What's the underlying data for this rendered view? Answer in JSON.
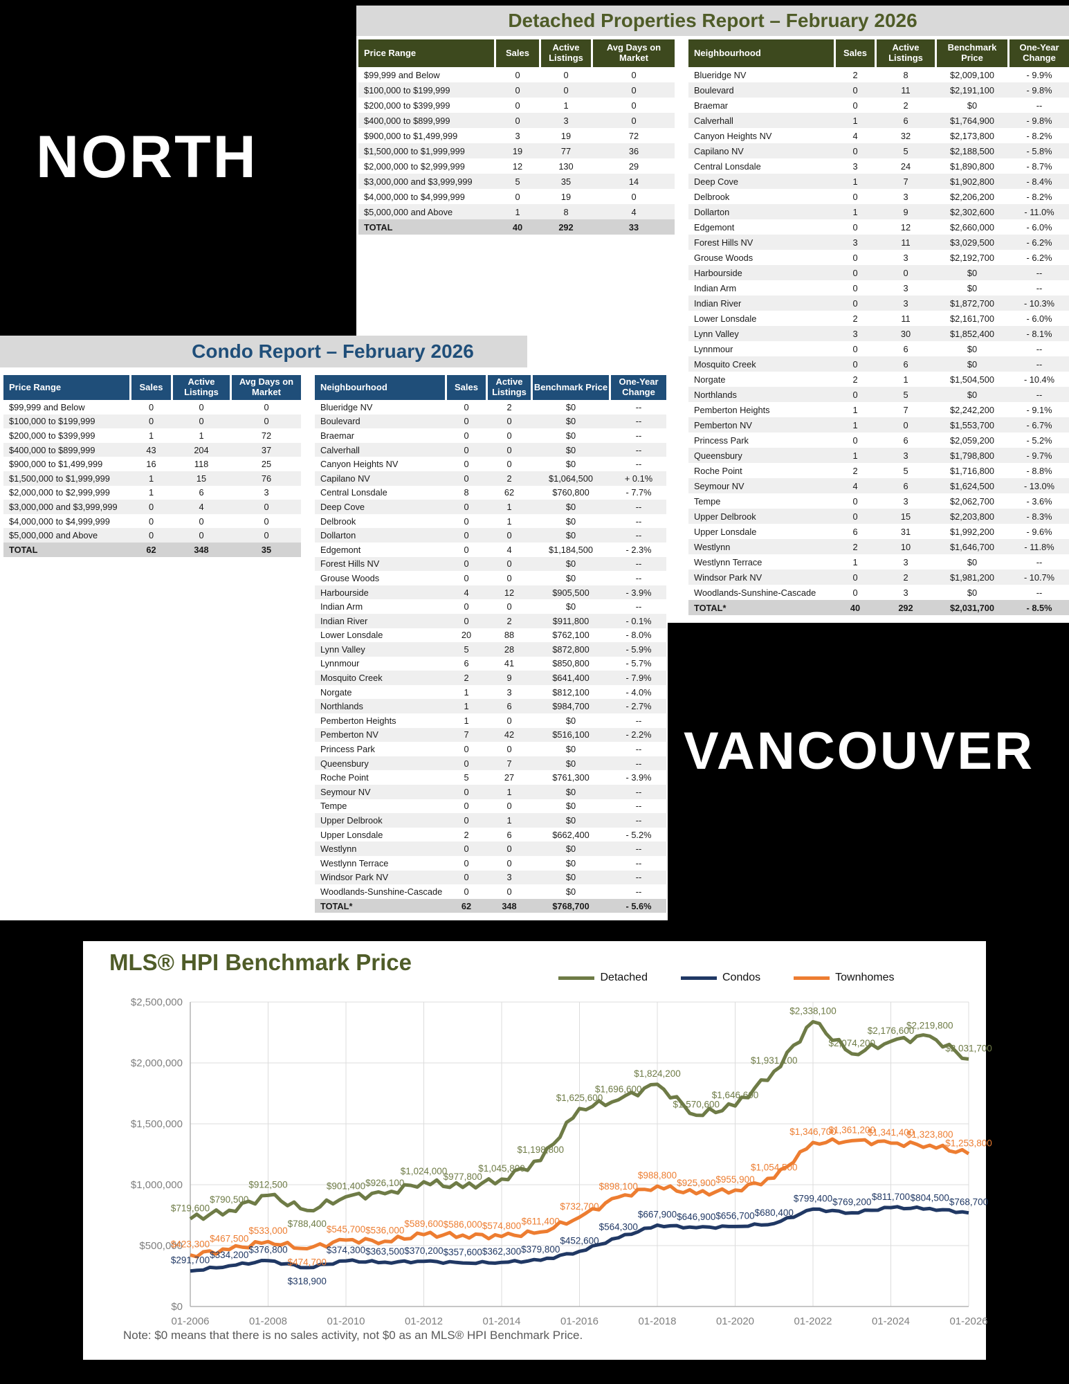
{
  "north_label": "NORTH",
  "vancouver_label": "VANCOUVER",
  "detached": {
    "title": "Detached Properties Report – February 2026",
    "price_table": {
      "headers": [
        "Price Range",
        "Sales",
        "Active Listings",
        "Avg Days on Market"
      ],
      "rows": [
        [
          "$99,999 and Below",
          "0",
          "0",
          "0"
        ],
        [
          "$100,000 to $199,999",
          "0",
          "0",
          "0"
        ],
        [
          "$200,000 to $399,999",
          "0",
          "1",
          "0"
        ],
        [
          "$400,000 to $899,999",
          "0",
          "3",
          "0"
        ],
        [
          "$900,000 to $1,499,999",
          "3",
          "19",
          "72"
        ],
        [
          "$1,500,000 to $1,999,999",
          "19",
          "77",
          "36"
        ],
        [
          "$2,000,000 to $2,999,999",
          "12",
          "130",
          "29"
        ],
        [
          "$3,000,000 and $3,999,999",
          "5",
          "35",
          "14"
        ],
        [
          "$4,000,000 to $4,999,999",
          "0",
          "19",
          "0"
        ],
        [
          "$5,000,000 and Above",
          "1",
          "8",
          "4"
        ]
      ],
      "total": [
        "TOTAL",
        "40",
        "292",
        "33"
      ]
    },
    "neighbourhood_table": {
      "headers": [
        "Neighbourhood",
        "Sales",
        "Active Listings",
        "Benchmark Price",
        "One-Year Change"
      ],
      "rows": [
        [
          "Blueridge NV",
          "2",
          "8",
          "$2,009,100",
          "- 9.9%"
        ],
        [
          "Boulevard",
          "0",
          "11",
          "$2,191,100",
          "- 9.8%"
        ],
        [
          "Braemar",
          "0",
          "2",
          "$0",
          "--"
        ],
        [
          "Calverhall",
          "1",
          "6",
          "$1,764,900",
          "- 9.8%"
        ],
        [
          "Canyon Heights NV",
          "4",
          "32",
          "$2,173,800",
          "- 8.2%"
        ],
        [
          "Capilano NV",
          "0",
          "5",
          "$2,188,500",
          "- 5.8%"
        ],
        [
          "Central Lonsdale",
          "3",
          "24",
          "$1,890,800",
          "- 8.7%"
        ],
        [
          "Deep Cove",
          "1",
          "7",
          "$1,902,800",
          "- 8.4%"
        ],
        [
          "Delbrook",
          "0",
          "3",
          "$2,206,200",
          "- 8.2%"
        ],
        [
          "Dollarton",
          "1",
          "9",
          "$2,302,600",
          "- 11.0%"
        ],
        [
          "Edgemont",
          "0",
          "12",
          "$2,660,000",
          "- 6.0%"
        ],
        [
          "Forest Hills NV",
          "3",
          "11",
          "$3,029,500",
          "- 6.2%"
        ],
        [
          "Grouse Woods",
          "0",
          "3",
          "$2,192,700",
          "- 6.2%"
        ],
        [
          "Harbourside",
          "0",
          "0",
          "$0",
          "--"
        ],
        [
          "Indian Arm",
          "0",
          "3",
          "$0",
          "--"
        ],
        [
          "Indian River",
          "0",
          "3",
          "$1,872,700",
          "- 10.3%"
        ],
        [
          "Lower Lonsdale",
          "2",
          "11",
          "$2,161,700",
          "- 6.0%"
        ],
        [
          "Lynn Valley",
          "3",
          "30",
          "$1,852,400",
          "- 8.1%"
        ],
        [
          "Lynnmour",
          "0",
          "6",
          "$0",
          "--"
        ],
        [
          "Mosquito Creek",
          "0",
          "6",
          "$0",
          "--"
        ],
        [
          "Norgate",
          "2",
          "1",
          "$1,504,500",
          "- 10.4%"
        ],
        [
          "Northlands",
          "0",
          "5",
          "$0",
          "--"
        ],
        [
          "Pemberton Heights",
          "1",
          "7",
          "$2,242,200",
          "- 9.1%"
        ],
        [
          "Pemberton NV",
          "1",
          "0",
          "$1,553,700",
          "- 6.7%"
        ],
        [
          "Princess Park",
          "0",
          "6",
          "$2,059,200",
          "- 5.2%"
        ],
        [
          "Queensbury",
          "1",
          "3",
          "$1,798,800",
          "- 9.7%"
        ],
        [
          "Roche Point",
          "2",
          "5",
          "$1,716,800",
          "- 8.8%"
        ],
        [
          "Seymour NV",
          "4",
          "6",
          "$1,624,500",
          "- 13.0%"
        ],
        [
          "Tempe",
          "0",
          "3",
          "$2,062,700",
          "- 3.6%"
        ],
        [
          "Upper Delbrook",
          "0",
          "15",
          "$2,203,800",
          "- 8.3%"
        ],
        [
          "Upper Lonsdale",
          "6",
          "31",
          "$1,992,200",
          "- 9.6%"
        ],
        [
          "Westlynn",
          "2",
          "10",
          "$1,646,700",
          "- 11.8%"
        ],
        [
          "Westlynn Terrace",
          "1",
          "3",
          "$0",
          "--"
        ],
        [
          "Windsor Park NV",
          "0",
          "2",
          "$1,981,200",
          "- 10.7%"
        ],
        [
          "Woodlands-Sunshine-Cascade",
          "0",
          "3",
          "$0",
          "--"
        ]
      ],
      "total": [
        "TOTAL*",
        "40",
        "292",
        "$2,031,700",
        "- 8.5%"
      ]
    }
  },
  "condo": {
    "title": "Condo Report – February 2026",
    "price_table": {
      "headers": [
        "Price Range",
        "Sales",
        "Active Listings",
        "Avg Days on Market"
      ],
      "rows": [
        [
          "$99,999 and Below",
          "0",
          "0",
          "0"
        ],
        [
          "$100,000 to $199,999",
          "0",
          "0",
          "0"
        ],
        [
          "$200,000 to $399,999",
          "1",
          "1",
          "72"
        ],
        [
          "$400,000 to $899,999",
          "43",
          "204",
          "37"
        ],
        [
          "$900,000 to $1,499,999",
          "16",
          "118",
          "25"
        ],
        [
          "$1,500,000 to $1,999,999",
          "1",
          "15",
          "76"
        ],
        [
          "$2,000,000 to $2,999,999",
          "1",
          "6",
          "3"
        ],
        [
          "$3,000,000 and $3,999,999",
          "0",
          "4",
          "0"
        ],
        [
          "$4,000,000 to $4,999,999",
          "0",
          "0",
          "0"
        ],
        [
          "$5,000,000 and Above",
          "0",
          "0",
          "0"
        ]
      ],
      "total": [
        "TOTAL",
        "62",
        "348",
        "35"
      ]
    },
    "neighbourhood_table": {
      "headers": [
        "Neighbourhood",
        "Sales",
        "Active Listings",
        "Benchmark Price",
        "One-Year Change"
      ],
      "rows": [
        [
          "Blueridge NV",
          "0",
          "2",
          "$0",
          "--"
        ],
        [
          "Boulevard",
          "0",
          "0",
          "$0",
          "--"
        ],
        [
          "Braemar",
          "0",
          "0",
          "$0",
          "--"
        ],
        [
          "Calverhall",
          "0",
          "0",
          "$0",
          "--"
        ],
        [
          "Canyon Heights NV",
          "0",
          "0",
          "$0",
          "--"
        ],
        [
          "Capilano NV",
          "0",
          "2",
          "$1,064,500",
          "+ 0.1%"
        ],
        [
          "Central Lonsdale",
          "8",
          "62",
          "$760,800",
          "- 7.7%"
        ],
        [
          "Deep Cove",
          "0",
          "1",
          "$0",
          "--"
        ],
        [
          "Delbrook",
          "0",
          "1",
          "$0",
          "--"
        ],
        [
          "Dollarton",
          "0",
          "0",
          "$0",
          "--"
        ],
        [
          "Edgemont",
          "0",
          "4",
          "$1,184,500",
          "- 2.3%"
        ],
        [
          "Forest Hills NV",
          "0",
          "0",
          "$0",
          "--"
        ],
        [
          "Grouse Woods",
          "0",
          "0",
          "$0",
          "--"
        ],
        [
          "Harbourside",
          "4",
          "12",
          "$905,500",
          "- 3.9%"
        ],
        [
          "Indian Arm",
          "0",
          "0",
          "$0",
          "--"
        ],
        [
          "Indian River",
          "0",
          "2",
          "$911,800",
          "- 0.1%"
        ],
        [
          "Lower Lonsdale",
          "20",
          "88",
          "$762,100",
          "- 8.0%"
        ],
        [
          "Lynn Valley",
          "5",
          "28",
          "$872,800",
          "- 5.9%"
        ],
        [
          "Lynnmour",
          "6",
          "41",
          "$850,800",
          "- 5.7%"
        ],
        [
          "Mosquito Creek",
          "2",
          "9",
          "$641,400",
          "- 7.9%"
        ],
        [
          "Norgate",
          "1",
          "3",
          "$812,100",
          "- 4.0%"
        ],
        [
          "Northlands",
          "1",
          "6",
          "$984,700",
          "- 2.7%"
        ],
        [
          "Pemberton Heights",
          "1",
          "0",
          "$0",
          "--"
        ],
        [
          "Pemberton NV",
          "7",
          "42",
          "$516,100",
          "- 2.2%"
        ],
        [
          "Princess Park",
          "0",
          "0",
          "$0",
          "--"
        ],
        [
          "Queensbury",
          "0",
          "7",
          "$0",
          "--"
        ],
        [
          "Roche Point",
          "5",
          "27",
          "$761,300",
          "- 3.9%"
        ],
        [
          "Seymour NV",
          "0",
          "1",
          "$0",
          "--"
        ],
        [
          "Tempe",
          "0",
          "0",
          "$0",
          "--"
        ],
        [
          "Upper Delbrook",
          "0",
          "1",
          "$0",
          "--"
        ],
        [
          "Upper Lonsdale",
          "2",
          "6",
          "$662,400",
          "- 5.2%"
        ],
        [
          "Westlynn",
          "0",
          "0",
          "$0",
          "--"
        ],
        [
          "Westlynn Terrace",
          "0",
          "0",
          "$0",
          "--"
        ],
        [
          "Windsor Park NV",
          "0",
          "3",
          "$0",
          "--"
        ],
        [
          "Woodlands-Sunshine-Cascade",
          "0",
          "0",
          "$0",
          "--"
        ]
      ],
      "total": [
        "TOTAL*",
        "62",
        "348",
        "$768,700",
        "- 5.6%"
      ]
    }
  },
  "chart_data": {
    "type": "line",
    "title": "MLS® HPI Benchmark Price",
    "note": "Note: $0 means that there is no sales activity, not $0 as an MLS® HPI Benchmark Price.",
    "years": [
      2006,
      2007,
      2008,
      2009,
      2010,
      2011,
      2012,
      2013,
      2014,
      2015,
      2016,
      2017,
      2018,
      2019,
      2020,
      2021,
      2022,
      2023,
      2024,
      2025,
      2026
    ],
    "x_tick_labels": [
      "01-2006",
      "01-2008",
      "01-2010",
      "01-2012",
      "01-2014",
      "01-2016",
      "01-2018",
      "01-2020",
      "01-2022",
      "01-2024",
      "01-2026"
    ],
    "y_tick_labels": [
      "$2,500,000",
      "$2,000,000",
      "$1,500,000",
      "$1,000,000",
      "$500,000",
      "$0"
    ],
    "ylim": [
      0,
      2500000
    ],
    "grid": true,
    "legend_position": "top",
    "series": [
      {
        "name": "Detached",
        "color": "#6e7b46",
        "values": [
          719600,
          790500,
          912500,
          788400,
          901400,
          926100,
          1024000,
          977800,
          1045800,
          1198800,
          1625600,
          1696600,
          1824200,
          1570600,
          1646600,
          1931100,
          2338100,
          2074200,
          2176600,
          2219800,
          2031700
        ]
      },
      {
        "name": "Condos",
        "color": "#203864",
        "values": [
          291700,
          334200,
          376800,
          318900,
          374300,
          363500,
          370200,
          357600,
          362300,
          379800,
          452600,
          564300,
          667900,
          646900,
          656700,
          680400,
          799400,
          769200,
          811700,
          804500,
          768700
        ]
      },
      {
        "name": "Townhomes",
        "color": "#ed7d31",
        "values": [
          423300,
          467500,
          533000,
          474700,
          545700,
          536000,
          589600,
          586000,
          574800,
          611400,
          732700,
          898100,
          988800,
          925900,
          955900,
          1054500,
          1346700,
          1361200,
          1341400,
          1323800,
          1253800
        ]
      }
    ]
  },
  "colors": {
    "detached_header_bg": "#3d491e",
    "detached_title": "#4f5c28",
    "condo_header_bg": "#1f4e79",
    "condo_title": "#1f4e79",
    "title_band_bg": "#d9d9d9",
    "total_row_bg": "#d2d2d2"
  }
}
